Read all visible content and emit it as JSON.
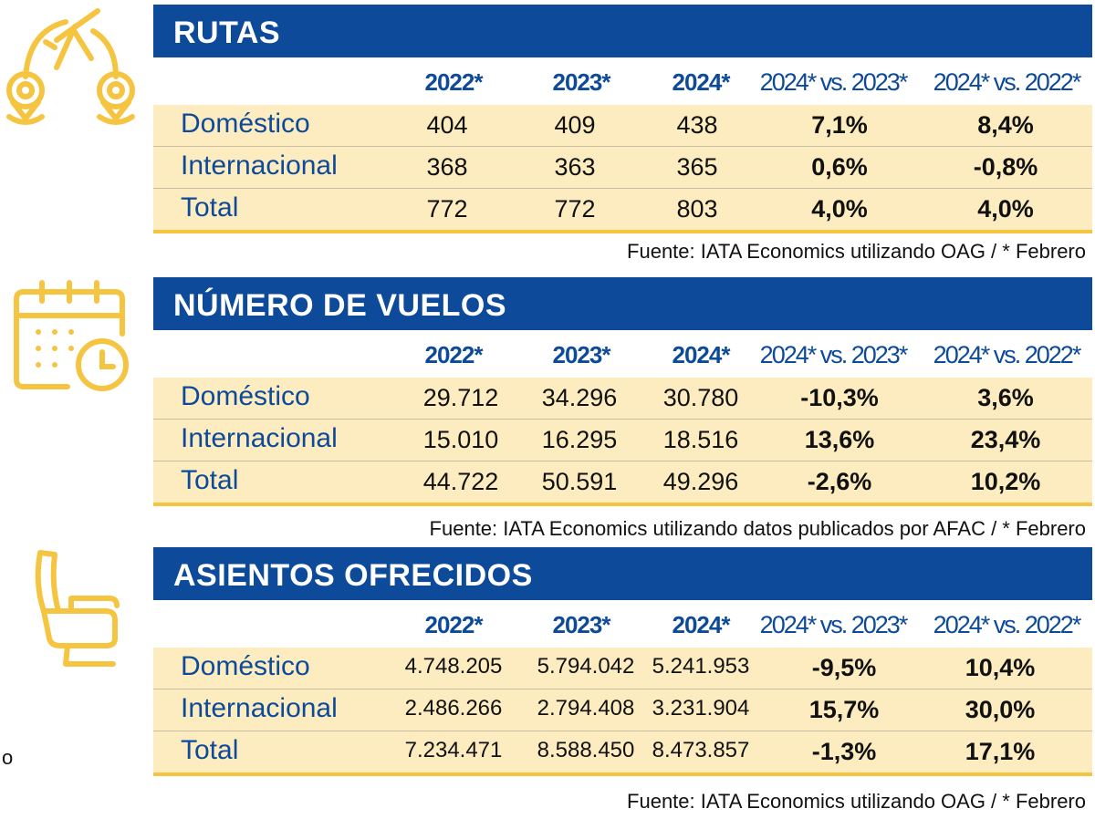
{
  "columns": [
    "2022*",
    "2023*",
    "2024*",
    "2024* vs. 2023*",
    "2024* vs. 2022*"
  ],
  "accent": "#0d4a9a",
  "row_bg": "#fcecc0",
  "icon_color": "#f5c542",
  "sections": [
    {
      "title": "RUTAS",
      "icon": "plane-route-icon",
      "rows": [
        {
          "label": "Doméstico",
          "values": [
            "404",
            "409",
            "438",
            "7,1%",
            "8,4%"
          ]
        },
        {
          "label": "Internacional",
          "values": [
            "368",
            "363",
            "365",
            "0,6%",
            "-0,8%"
          ]
        },
        {
          "label": "Total",
          "values": [
            "772",
            "772",
            "803",
            "4,0%",
            "4,0%"
          ]
        }
      ],
      "source": "Fuente: IATA Economics utilizando OAG / * Febrero"
    },
    {
      "title": "NÚMERO DE VUELOS",
      "icon": "calendar-clock-icon",
      "rows": [
        {
          "label": "Doméstico",
          "values": [
            "29.712",
            "34.296",
            "30.780",
            "-10,3%",
            "3,6%"
          ]
        },
        {
          "label": "Internacional",
          "values": [
            "15.010",
            "16.295",
            "18.516",
            "13,6%",
            "23,4%"
          ]
        },
        {
          "label": "Total",
          "values": [
            "44.722",
            "50.591",
            "49.296",
            "-2,6%",
            "10,2%"
          ]
        }
      ],
      "source": "Fuente: IATA Economics utilizando datos publicados por AFAC  / * Febrero"
    },
    {
      "title": "ASIENTOS OFRECIDOS",
      "icon": "seat-icon",
      "rows": [
        {
          "label": "Doméstico",
          "values": [
            "4.748.205",
            "5.794.042",
            "5.241.953",
            "-9,5%",
            "10,4%"
          ]
        },
        {
          "label": "Internacional",
          "values": [
            "2.486.266",
            "2.794.408",
            "3.231.904",
            "15,7%",
            "30,0%"
          ]
        },
        {
          "label": "Total",
          "values": [
            "7.234.471",
            "8.588.450",
            "8.473.857",
            "-1,3%",
            "17,1%"
          ]
        }
      ],
      "source": "Fuente: IATA Economics utilizando OAG  / * Febrero"
    }
  ],
  "stray_text": "o"
}
